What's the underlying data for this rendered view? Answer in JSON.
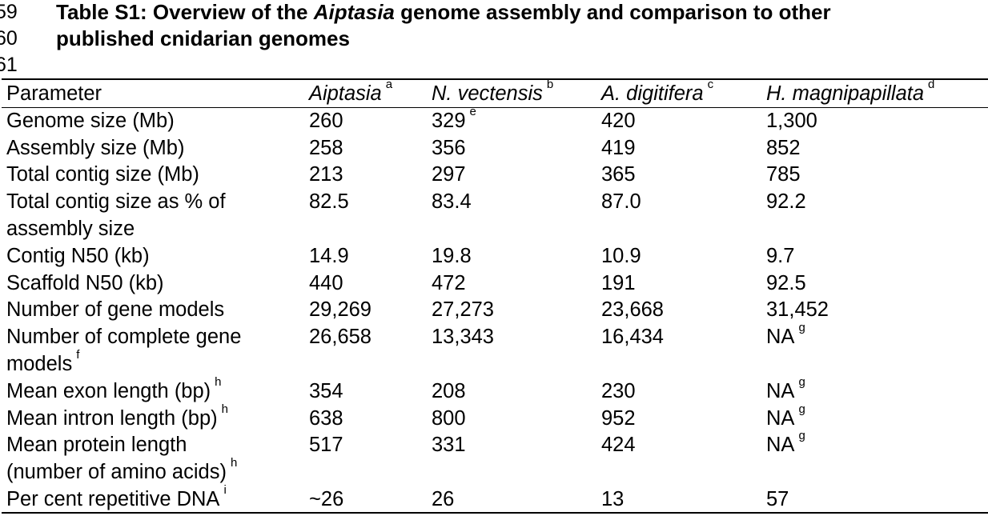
{
  "line_numbers": [
    "59",
    "60",
    "61"
  ],
  "title": {
    "prefix": "Table S1:  Overview of the ",
    "italic": "Aiptasia",
    "suffix": " genome assembly and comparison to other",
    "line2": "published cnidarian genomes"
  },
  "table": {
    "header": {
      "param": "Parameter",
      "cols": [
        {
          "name": "Aiptasia",
          "sup": "a"
        },
        {
          "name": "N. vectensis",
          "sup": "b"
        },
        {
          "name": "A.  digitifera",
          "sup": "c"
        },
        {
          "name": "H. magnipapillata",
          "sup": "d"
        }
      ]
    },
    "rows": [
      {
        "label": "Genome size (Mb)",
        "label2": "",
        "label_sup": "",
        "cells": [
          "260",
          "329",
          "420",
          "1,300"
        ],
        "cell_sups": [
          "",
          "e",
          "",
          ""
        ]
      },
      {
        "label": "Assembly size (Mb)",
        "label2": "",
        "label_sup": "",
        "cells": [
          "258",
          "356",
          "419",
          "852"
        ],
        "cell_sups": [
          "",
          "",
          "",
          ""
        ]
      },
      {
        "label": "Total contig size (Mb)",
        "label2": "",
        "label_sup": "",
        "cells": [
          "213",
          "297",
          "365",
          "785"
        ],
        "cell_sups": [
          "",
          "",
          "",
          ""
        ]
      },
      {
        "label": "Total contig size as % of",
        "label2": "assembly size",
        "label_sup": "",
        "cells": [
          "82.5",
          "83.4",
          "87.0",
          "92.2"
        ],
        "cell_sups": [
          "",
          "",
          "",
          ""
        ]
      },
      {
        "label": "Contig N50 (kb)",
        "label2": "",
        "label_sup": "",
        "cells": [
          "14.9",
          "19.8",
          "10.9",
          "9.7"
        ],
        "cell_sups": [
          "",
          "",
          "",
          ""
        ]
      },
      {
        "label": "Scaffold N50 (kb)",
        "label2": "",
        "label_sup": "",
        "cells": [
          "440",
          "472",
          "191",
          "92.5"
        ],
        "cell_sups": [
          "",
          "",
          "",
          ""
        ]
      },
      {
        "label": "Number of gene models",
        "label2": "",
        "label_sup": "",
        "cells": [
          "29,269",
          "27,273",
          "23,668",
          "31,452"
        ],
        "cell_sups": [
          "",
          "",
          "",
          ""
        ]
      },
      {
        "label": "Number of complete gene",
        "label2": "models",
        "label_sup": "f",
        "cells": [
          "26,658",
          "13,343",
          "16,434",
          "NA"
        ],
        "cell_sups": [
          "",
          "",
          "",
          "g"
        ]
      },
      {
        "label": "Mean exon length (bp)",
        "label2": "",
        "label_sup": "h",
        "cells": [
          "354",
          "208",
          "230",
          "NA"
        ],
        "cell_sups": [
          "",
          "",
          "",
          "g"
        ]
      },
      {
        "label": "Mean intron length (bp)",
        "label2": "",
        "label_sup": "h",
        "cells": [
          "638",
          "800",
          "952",
          "NA"
        ],
        "cell_sups": [
          "",
          "",
          "",
          "g"
        ]
      },
      {
        "label": "Mean protein length",
        "label2": "(number of amino acids)",
        "label_sup": "h",
        "cells": [
          "517",
          "331",
          "424",
          "NA"
        ],
        "cell_sups": [
          "",
          "",
          "",
          "g"
        ]
      },
      {
        "label": "Per cent repetitive DNA",
        "label2": "",
        "label_sup": "i",
        "cells": [
          "~26",
          "26",
          "13",
          "57"
        ],
        "cell_sups": [
          "",
          "",
          "",
          ""
        ]
      }
    ]
  }
}
